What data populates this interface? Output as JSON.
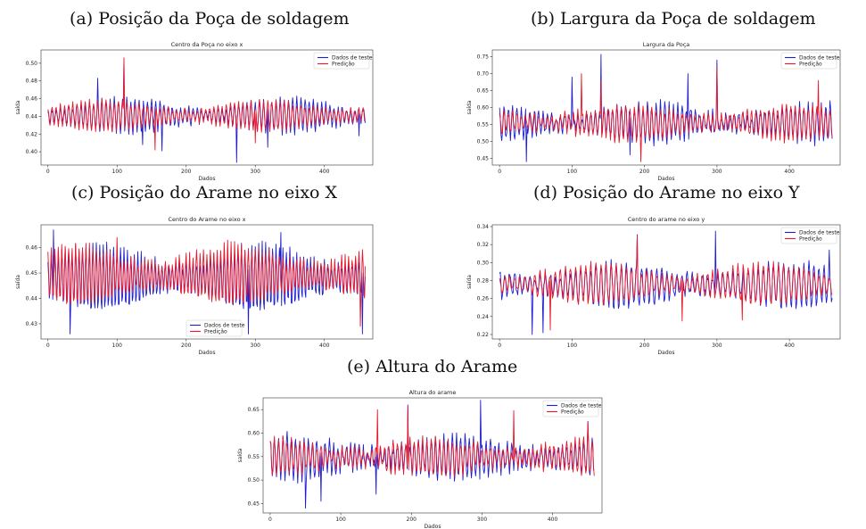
{
  "figure": {
    "captions": [
      "(a) Posição da Poça de soldagem",
      "(b) Largura da Poça de soldagem",
      "(c) Posição do Arame no eixo X",
      "(d) Posição do Arame no eixo Y",
      "(e) Altura do Arame"
    ]
  },
  "colors": {
    "test": "#1f1fd1",
    "pred": "#e8192c"
  },
  "chart_data": [
    {
      "type": "line",
      "title": "Centro da Poça no eixo x",
      "xlabel": "Dados",
      "ylabel": "saída",
      "xlim": [
        -10,
        470
      ],
      "ylim": [
        0.385,
        0.515
      ],
      "xticks": [
        0,
        100,
        200,
        300,
        400
      ],
      "yticks": [
        0.4,
        0.42,
        0.44,
        0.46,
        0.48,
        0.5
      ],
      "yticklabels": [
        "0.40",
        "0.42",
        "0.44",
        "0.46",
        "0.48",
        "0.50"
      ],
      "legend": "top-right",
      "period": 6,
      "series": [
        {
          "name": "Dados de teste",
          "center": 0.441,
          "amp": 0.017,
          "noise": 0.004,
          "seed": 11,
          "spikes": [
            [
              72,
              0.483
            ],
            [
              110,
              0.506
            ],
            [
              137,
              0.408
            ],
            [
              165,
              0.401
            ],
            [
              273,
              0.388
            ],
            [
              318,
              0.405
            ],
            [
              450,
              0.418
            ]
          ]
        },
        {
          "name": "Predição",
          "center": 0.441,
          "amp": 0.015,
          "noise": 0.003,
          "seed": 12,
          "spikes": [
            [
              110,
              0.506
            ],
            [
              155,
              0.402
            ],
            [
              300,
              0.41
            ]
          ]
        }
      ]
    },
    {
      "type": "line",
      "title": "Largura da Poça",
      "xlabel": "Dados",
      "ylabel": "saída",
      "xlim": [
        -10,
        470
      ],
      "ylim": [
        0.43,
        0.77
      ],
      "xticks": [
        0,
        100,
        200,
        300,
        400
      ],
      "yticks": [
        0.45,
        0.5,
        0.55,
        0.6,
        0.65,
        0.7,
        0.75
      ],
      "yticklabels": [
        "0.45",
        "0.50",
        "0.55",
        "0.60",
        "0.65",
        "0.70",
        "0.75"
      ],
      "legend": "top-right",
      "period": 6,
      "series": [
        {
          "name": "Dados de teste",
          "center": 0.555,
          "amp": 0.05,
          "noise": 0.015,
          "seed": 21,
          "spikes": [
            [
              140,
              0.757
            ],
            [
              300,
              0.74
            ],
            [
              100,
              0.69
            ],
            [
              260,
              0.7
            ],
            [
              37,
              0.44
            ],
            [
              180,
              0.46
            ]
          ]
        },
        {
          "name": "Predição",
          "center": 0.555,
          "amp": 0.045,
          "noise": 0.012,
          "seed": 22,
          "spikes": [
            [
              300,
              0.72
            ],
            [
              140,
              0.68
            ],
            [
              113,
              0.7
            ],
            [
              440,
              0.68
            ],
            [
              195,
              0.44
            ]
          ]
        }
      ]
    },
    {
      "type": "line",
      "title": "Centro do Arame no eixo x",
      "xlabel": "Dados",
      "ylabel": "saída",
      "xlim": [
        -10,
        470
      ],
      "ylim": [
        0.424,
        0.469
      ],
      "xticks": [
        0,
        100,
        200,
        300,
        400
      ],
      "yticks": [
        0.43,
        0.44,
        0.45,
        0.46
      ],
      "yticklabels": [
        "0.43",
        "0.44",
        "0.45",
        "0.46"
      ],
      "legend": "bottom-center",
      "period": 5,
      "series": [
        {
          "name": "Dados de teste",
          "center": 0.448,
          "amp": 0.012,
          "noise": 0.002,
          "seed": 31,
          "spikes": [
            [
              8,
              0.467
            ],
            [
              32,
              0.426
            ],
            [
              290,
              0.426
            ],
            [
              337,
              0.466
            ],
            [
              455,
              0.426
            ]
          ]
        },
        {
          "name": "Predição",
          "center": 0.449,
          "amp": 0.011,
          "noise": 0.002,
          "seed": 32,
          "spikes": [
            [
              452,
              0.429
            ],
            [
              100,
              0.464
            ]
          ]
        }
      ]
    },
    {
      "type": "line",
      "title": "Centro do arame no eixo y",
      "xlabel": "Dados",
      "ylabel": "saída",
      "xlim": [
        -10,
        470
      ],
      "ylim": [
        0.215,
        0.342
      ],
      "xticks": [
        0,
        100,
        200,
        300,
        400
      ],
      "yticks": [
        0.22,
        0.24,
        0.26,
        0.28,
        0.3,
        0.32,
        0.34
      ],
      "yticklabels": [
        "0.22",
        "0.24",
        "0.26",
        "0.28",
        "0.30",
        "0.32",
        "0.34"
      ],
      "legend": "top-right",
      "period": 7,
      "series": [
        {
          "name": "Dados de teste",
          "center": 0.275,
          "amp": 0.022,
          "noise": 0.005,
          "seed": 41,
          "spikes": [
            [
              298,
              0.335
            ],
            [
              45,
              0.22
            ],
            [
              60,
              0.222
            ],
            [
              190,
              0.331
            ],
            [
              455,
              0.314
            ]
          ]
        },
        {
          "name": "Predição",
          "center": 0.276,
          "amp": 0.02,
          "noise": 0.004,
          "seed": 42,
          "spikes": [
            [
              190,
              0.33
            ],
            [
              70,
              0.225
            ],
            [
              252,
              0.235
            ],
            [
              335,
              0.236
            ]
          ]
        }
      ]
    },
    {
      "type": "line",
      "title": "Altura do arame",
      "xlabel": "Dados",
      "ylabel": "saída",
      "xlim": [
        -10,
        470
      ],
      "ylim": [
        0.43,
        0.675
      ],
      "xticks": [
        0,
        100,
        200,
        300,
        400
      ],
      "yticks": [
        0.45,
        0.5,
        0.55,
        0.6,
        0.65
      ],
      "yticklabels": [
        "0.45",
        "0.50",
        "0.55",
        "0.60",
        "0.65"
      ],
      "legend": "top-right",
      "period": 6,
      "series": [
        {
          "name": "Dados de teste",
          "center": 0.548,
          "amp": 0.04,
          "noise": 0.012,
          "seed": 51,
          "spikes": [
            [
              298,
              0.67
            ],
            [
              195,
              0.66
            ],
            [
              50,
              0.44
            ],
            [
              72,
              0.455
            ],
            [
              150,
              0.47
            ],
            [
              450,
              0.625
            ]
          ]
        },
        {
          "name": "Predição",
          "center": 0.549,
          "amp": 0.036,
          "noise": 0.01,
          "seed": 52,
          "spikes": [
            [
              195,
              0.655
            ],
            [
              152,
              0.65
            ],
            [
              345,
              0.648
            ],
            [
              450,
              0.622
            ]
          ]
        }
      ]
    }
  ]
}
